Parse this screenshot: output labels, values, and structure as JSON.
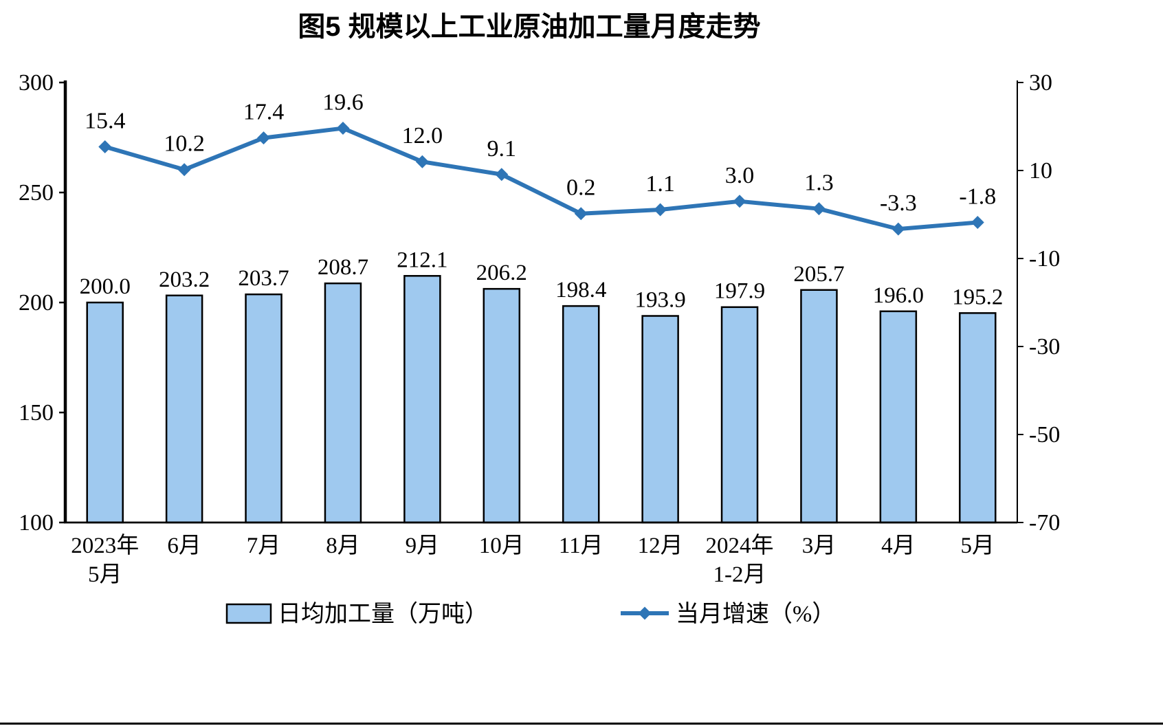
{
  "chart_data": {
    "type": "bar",
    "title": "图5 规模以上工业原油加工量月度走势",
    "categories": [
      "2023年\n5月",
      "6月",
      "7月",
      "8月",
      "9月",
      "10月",
      "11月",
      "12月",
      "2024年\n1-2月",
      "3月",
      "4月",
      "5月"
    ],
    "series": [
      {
        "name": "日均加工量（万吨）",
        "type": "bar",
        "axis": "left",
        "values": [
          200.0,
          203.2,
          203.7,
          208.7,
          212.1,
          206.2,
          198.4,
          193.9,
          197.9,
          205.7,
          196.0,
          195.2
        ],
        "labels": [
          "200.0",
          "203.2",
          "203.7",
          "208.7",
          "212.1",
          "206.2",
          "198.4",
          "193.9",
          "197.9",
          "205.7",
          "196.0",
          "195.2"
        ]
      },
      {
        "name": "当月增速（%）",
        "type": "line",
        "axis": "right",
        "values": [
          15.4,
          10.2,
          17.4,
          19.6,
          12.0,
          9.1,
          0.2,
          1.1,
          3.0,
          1.3,
          -3.3,
          -1.8
        ],
        "labels": [
          "15.4",
          "10.2",
          "17.4",
          "19.6",
          "12.0",
          "9.1",
          "0.2",
          "1.1",
          "3.0",
          "1.3",
          "-3.3",
          "-1.8"
        ]
      }
    ],
    "left_axis": {
      "min": 100,
      "max": 300,
      "ticks": [
        100,
        150,
        200,
        250,
        300
      ]
    },
    "right_axis": {
      "min": -70,
      "max": 30,
      "ticks": [
        -70,
        -50,
        -30,
        -10,
        10,
        30
      ]
    },
    "colors": {
      "bar_fill": "#9FC9EF",
      "bar_stroke": "#000000",
      "line": "#2E75B6",
      "text": "#000000"
    },
    "legend": {
      "position": "bottom",
      "items": [
        "日均加工量（万吨）",
        "当月增速（%）"
      ]
    },
    "grid": false
  }
}
